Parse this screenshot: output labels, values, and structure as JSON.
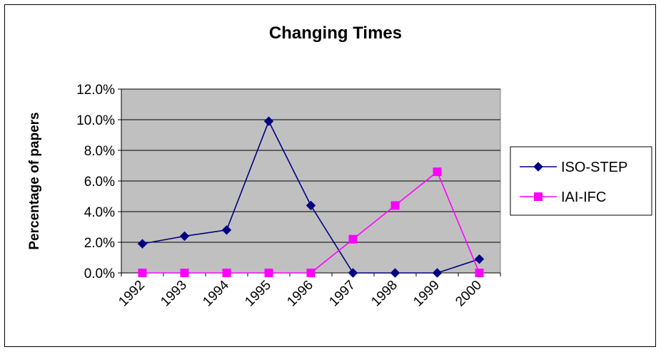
{
  "chart_data": {
    "type": "line",
    "title": "Changing Times",
    "xlabel": "",
    "ylabel": "Percentage of papers",
    "categories": [
      "1992",
      "1993",
      "1994",
      "1995",
      "1996",
      "1997",
      "1998",
      "1999",
      "2000"
    ],
    "yticks": [
      "0.0%",
      "2.0%",
      "4.0%",
      "6.0%",
      "8.0%",
      "10.0%",
      "12.0%"
    ],
    "ylim": [
      0,
      0.12
    ],
    "grid": true,
    "legend_position": "right",
    "plot_background": "#c0c0c0",
    "series": [
      {
        "name": "ISO-STEP",
        "color": "#000080",
        "marker": "diamond",
        "values": [
          0.019,
          0.024,
          0.028,
          0.099,
          0.044,
          0.0,
          0.0,
          0.0,
          0.009
        ]
      },
      {
        "name": "IAI-IFC",
        "color": "#ff00ff",
        "marker": "square",
        "values": [
          0.0,
          0.0,
          0.0,
          0.0,
          0.0,
          0.022,
          0.044,
          0.066,
          0.0
        ]
      }
    ]
  }
}
